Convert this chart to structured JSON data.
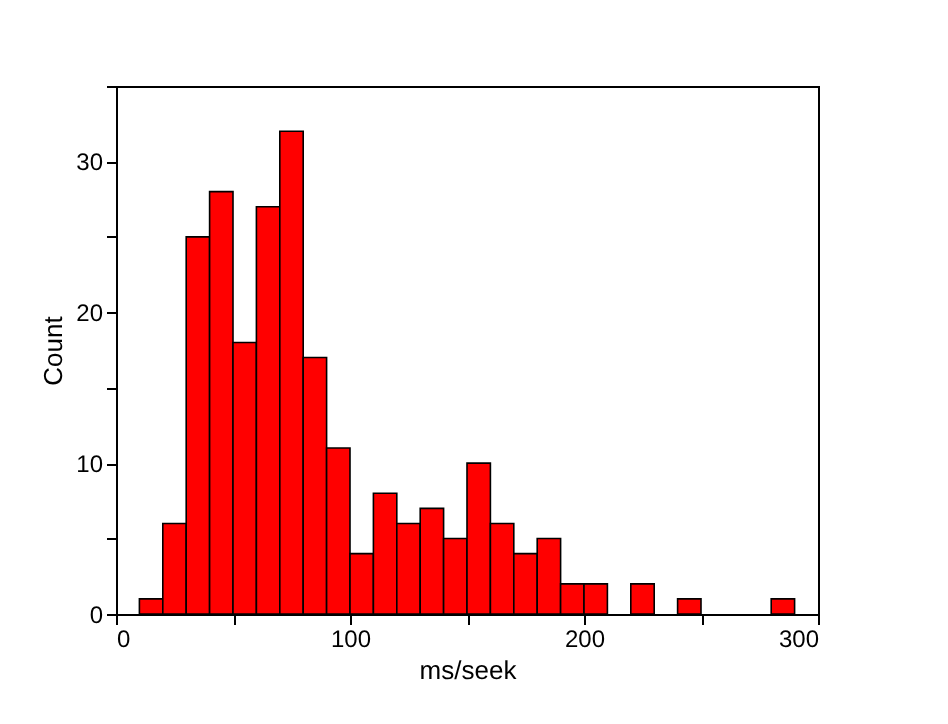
{
  "chart_data": {
    "type": "histogram",
    "xlabel": "ms/seek",
    "ylabel": "Count",
    "bins": [
      10,
      20,
      30,
      40,
      50,
      60,
      70,
      80,
      90,
      100,
      110,
      120,
      130,
      140,
      150,
      160,
      170,
      180,
      190,
      200,
      210,
      220,
      230,
      240,
      250,
      260,
      270,
      280,
      290
    ],
    "values": [
      1,
      6,
      25,
      28,
      18,
      27,
      32,
      17,
      11,
      4,
      8,
      6,
      7,
      5,
      10,
      6,
      4,
      5,
      2,
      2,
      0,
      2,
      0,
      1,
      0,
      0,
      0,
      1
    ],
    "color": "#ff0000",
    "xlim": [
      0,
      300
    ],
    "xticks": [
      0,
      {
        "value": 50,
        "label": null
      },
      100,
      {
        "value": 150,
        "label": null
      },
      200,
      {
        "value": 250,
        "label": null
      },
      300
    ],
    "ylim": [
      0,
      35
    ],
    "yticks": [
      0,
      {
        "value": 5,
        "label": null
      },
      10,
      {
        "value": 15,
        "label": null
      },
      20,
      {
        "value": 25,
        "label": null
      },
      30,
      {
        "value": 35,
        "label": null
      }
    ],
    "grid": false
  }
}
